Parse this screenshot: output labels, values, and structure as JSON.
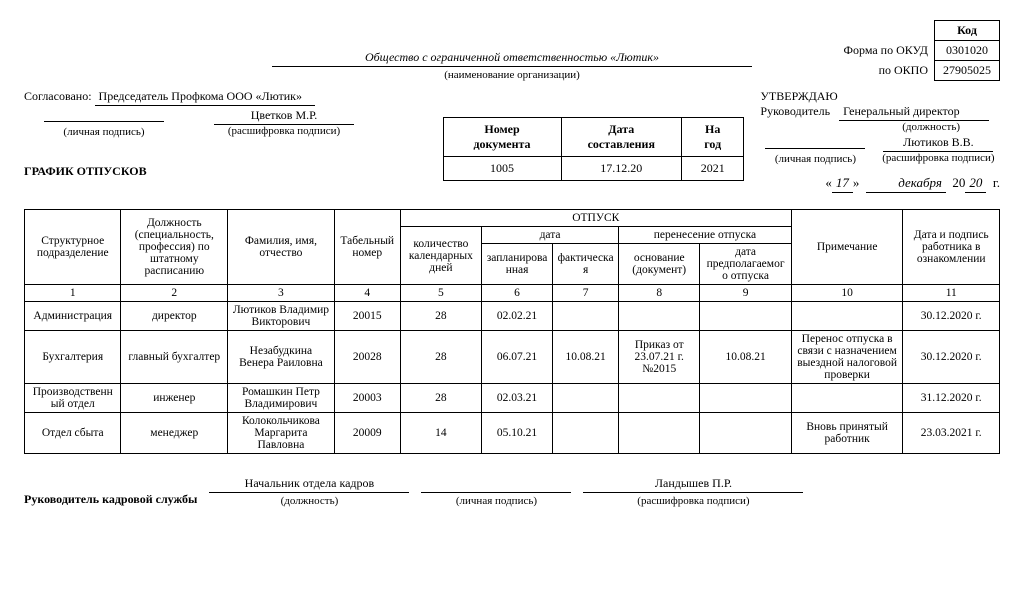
{
  "codes": {
    "header_kod": "Код",
    "okud_label": "Форма по ОКУД",
    "okud_value": "0301020",
    "okpo_label": "по ОКПО",
    "okpo_value": "27905025"
  },
  "org": {
    "name": "Общество с ограниченной ответственностью «Лютик»",
    "caption": "(наименование организации)"
  },
  "agree": {
    "label": "Согласовано:",
    "position": "Председатель Профкома ООО «Лютик»",
    "name": "Цветков М.Р.",
    "sig_cap": "(личная подпись)",
    "name_cap": "(расшифровка подписи)"
  },
  "approve": {
    "title": "УТВЕРЖДАЮ",
    "head_label": "Руководитель",
    "position": "Генеральный директор",
    "position_cap": "(должность)",
    "name": "Лютиков В.В.",
    "sig_cap": "(личная подпись)",
    "name_cap": "(расшифровка подписи)"
  },
  "title": "ГРАФИК ОТПУСКОВ",
  "docinfo": {
    "h1": "Номер документа",
    "h2": "Дата составления",
    "h3": "На год",
    "v1": "1005",
    "v2": "17.12.20",
    "v3": "2021"
  },
  "dateline": {
    "quote_l": "«",
    "day": "17",
    "quote_r": "»",
    "month": "декабря",
    "y_prefix": "20",
    "y_suffix": "20",
    "g": "г."
  },
  "table": {
    "headers": {
      "c1": "Структурное подразделение",
      "c2": "Должность (специальность, профессия) по штатному расписанию",
      "c3": "Фамилия, имя, отчество",
      "c4": "Табельный номер",
      "otpusk": "ОТПУСК",
      "c5": "количество календарных дней",
      "data_group": "дата",
      "c6": "запланированная",
      "c7": "фактическая",
      "perenos_group": "перенесение отпуска",
      "c8": "основание (документ)",
      "c9": "дата предполагаемого отпуска",
      "c10": "Примечание",
      "c11": "Дата и подпись работника в ознакомлении"
    },
    "nums": [
      "1",
      "2",
      "3",
      "4",
      "5",
      "6",
      "7",
      "8",
      "9",
      "10",
      "11"
    ],
    "rows": [
      {
        "c1": "Администрация",
        "c2": "директор",
        "c3": "Лютиков Владимир Викторович",
        "c4": "20015",
        "c5": "28",
        "c6": "02.02.21",
        "c7": "",
        "c8": "",
        "c9": "",
        "c10": "",
        "c11": "30.12.2020 г."
      },
      {
        "c1": "Бухгалтерия",
        "c2": "главный бухгалтер",
        "c3": "Незабудкина Венера Раиловна",
        "c4": "20028",
        "c5": "28",
        "c6": "06.07.21",
        "c7": "10.08.21",
        "c8": "Приказ от 23.07.21 г. №2015",
        "c9": "10.08.21",
        "c10": "Перенос отпуска в связи с назначением выездной налоговой проверки",
        "c11": "30.12.2020 г."
      },
      {
        "c1": "Производственный отдел",
        "c2": "инженер",
        "c3": "Ромашкин Петр Владимирович",
        "c4": "20003",
        "c5": "28",
        "c6": "02.03.21",
        "c7": "",
        "c8": "",
        "c9": "",
        "c10": "",
        "c11": "31.12.2020 г."
      },
      {
        "c1": "Отдел сбыта",
        "c2": "менеджер",
        "c3": "Колокольчикова Маргарита Павловна",
        "c4": "20009",
        "c5": "14",
        "c6": "05.10.21",
        "c7": "",
        "c8": "",
        "c9": "",
        "c10": "Вновь принятый работник",
        "c11": "23.03.2021 г."
      }
    ]
  },
  "hr_sign": {
    "label": "Руководитель кадровой службы",
    "position": "Начальник отдела кадров",
    "position_cap": "(должность)",
    "sig_cap": "(личная подпись)",
    "name": "Ландышев П.Р.",
    "name_cap": "(расшифровка подписи)"
  },
  "colors": {
    "text": "#000000",
    "bg": "#ffffff",
    "border": "#000000"
  }
}
